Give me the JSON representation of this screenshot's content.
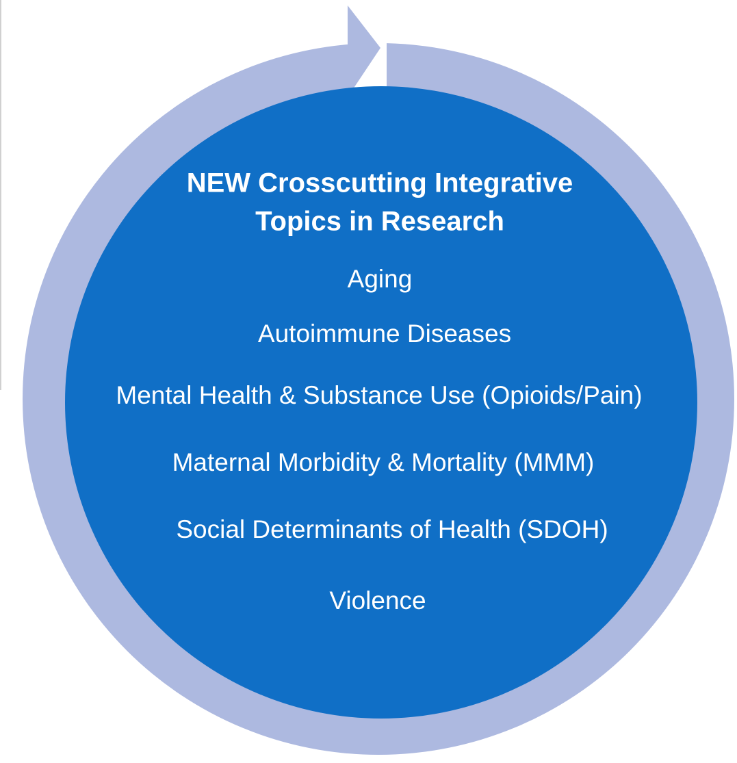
{
  "title": [
    "NEW Crosscutting Integrative",
    "Topics in Research"
  ],
  "items": [
    "Aging",
    "Autoimmune Diseases",
    "Mental Health & Substance Use (Opioids/Pain)",
    "Maternal Morbidity & Mortality (MMM)",
    "Social Determinants of Health (SDOH)",
    "Violence"
  ]
}
